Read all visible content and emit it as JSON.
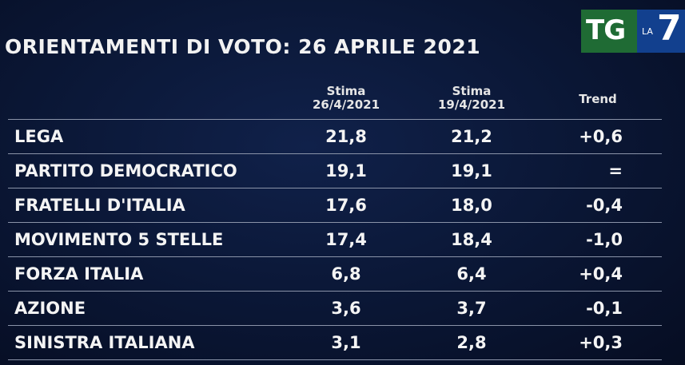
{
  "header": {
    "title": "ORIENTAMENTI DI VOTO: 26 APRILE 2021"
  },
  "logo": {
    "left": "TG",
    "small": "LA",
    "right": "7"
  },
  "table": {
    "columns": [
      [
        "Stima",
        "26/4/2021"
      ],
      [
        "Stima",
        "19/4/2021"
      ],
      [
        "Trend"
      ]
    ],
    "rows": [
      [
        "LEGA",
        "21,8",
        "21,2",
        "+0,6"
      ],
      [
        "PARTITO DEMOCRATICO",
        "19,1",
        "19,1",
        "="
      ],
      [
        "FRATELLI D'ITALIA",
        "17,6",
        "18,0",
        "-0,4"
      ],
      [
        "MOVIMENTO 5 STELLE",
        "17,4",
        "18,4",
        "-1,0"
      ],
      [
        "FORZA ITALIA",
        "6,8",
        "6,4",
        "+0,4"
      ],
      [
        "AZIONE",
        "3,6",
        "3,7",
        "-0,1"
      ],
      [
        "SINISTRA ITALIANA",
        "3,1",
        "2,8",
        "+0,3"
      ]
    ]
  }
}
